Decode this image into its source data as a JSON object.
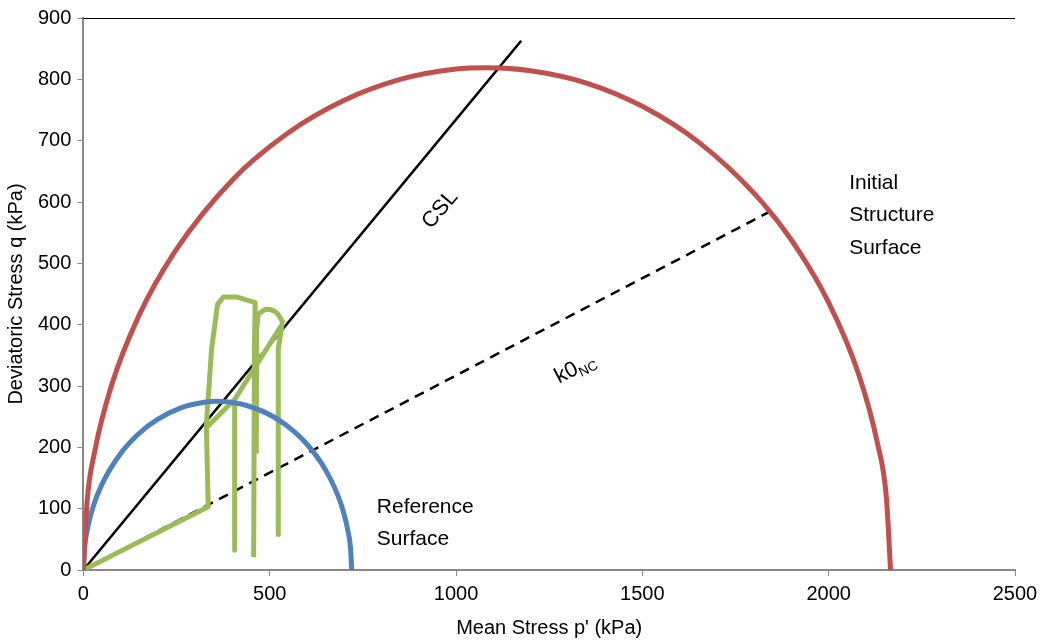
{
  "chart_data": {
    "type": "line",
    "xlabel": "Mean Stress p' (kPa)",
    "ylabel": "Deviatoric Stress q (kPa)",
    "xlim": [
      0,
      2500
    ],
    "xticks": [
      0,
      500,
      1000,
      1500,
      2000,
      2500
    ],
    "ylim": [
      0,
      900
    ],
    "yticks": [
      0,
      100,
      200,
      300,
      400,
      500,
      600,
      700,
      800,
      900
    ],
    "grid": false,
    "legend": false,
    "marker": "none",
    "series": [
      {
        "name": "Initial Structure Surface",
        "color": "#c0504d",
        "x": [
          0,
          10,
          30,
          75,
          150,
          250,
          400,
          550,
          700,
          850,
          1000,
          1083,
          1200,
          1350,
          1500,
          1650,
          1800,
          1900,
          2000,
          2080,
          2130,
          2155,
          2166
        ],
        "values": [
          0,
          111,
          192,
          300,
          416,
          523,
          636,
          713,
          766,
          800,
          817,
          819,
          814,
          794,
          756,
          698,
          614,
          538,
          436,
          320,
          209,
          117,
          0
        ]
      },
      {
        "name": "Reference Surface",
        "color": "#4f81bd",
        "x": [
          0,
          3,
          10,
          25,
          50,
          100,
          150,
          200,
          260,
          320,
          360,
          420,
          480,
          540,
          600,
          650,
          690,
          710,
          717,
          720
        ],
        "values": [
          0,
          35,
          64,
          101,
          140,
          190,
          223,
          246,
          264,
          273,
          275,
          271,
          259,
          238,
          205,
          163,
          110,
          64,
          35,
          0
        ]
      },
      {
        "color": "#9bbb59",
        "x": [
          0,
          335,
          330,
          344,
          360,
          376,
          413,
          461,
          459,
          457
        ],
        "values": [
          0,
          103,
          236,
          360,
          433,
          445,
          445,
          436,
          360,
          21
        ]
      },
      {
        "color": "#9bbb59",
        "x": [
          330,
          406,
          406
        ],
        "values": [
          232,
          278,
          32
        ]
      },
      {
        "color": "#9bbb59",
        "x": [
          406,
          533,
          523,
          523
        ],
        "values": [
          278,
          400,
          360,
          58
        ]
      },
      {
        "color": "#9bbb59",
        "x": [
          464,
          465,
          473,
          491,
          519,
          537
        ],
        "values": [
          190,
          388,
          419,
          425,
          419,
          402
        ]
      },
      {
        "name": "CSL",
        "color": "#000000",
        "x": [
          0,
          1175
        ],
        "values": [
          0,
          863
        ]
      },
      {
        "name": "k0$_{NC}$",
        "color": "#000000",
        "line_style": "dashed",
        "x": [
          0,
          1838
        ],
        "values": [
          0,
          583
        ]
      }
    ]
  }
}
